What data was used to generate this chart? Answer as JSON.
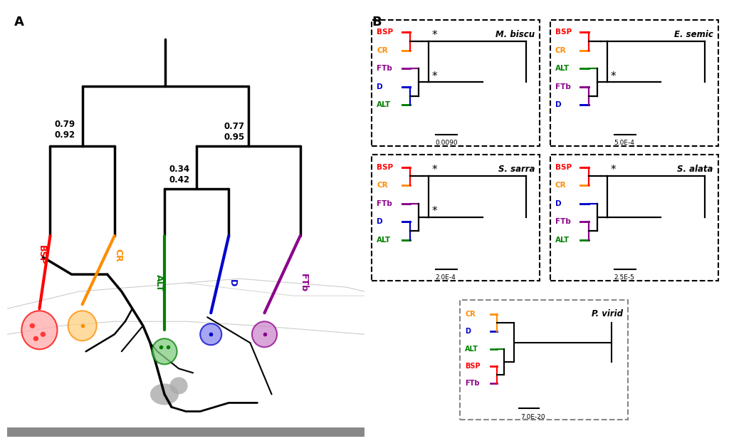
{
  "colors": {
    "BSP": "#ff0000",
    "CR": "#ff8c00",
    "ALT": "#008000",
    "D": "#0000cd",
    "FTb": "#8b008b"
  },
  "species_trees": [
    {
      "name": "M. biscu",
      "box_style": "dashed_black",
      "order": [
        "BSP",
        "CR",
        "FTb",
        "D",
        "ALT"
      ],
      "g1": [
        "BSP",
        "CR"
      ],
      "g2_outer": "FTb",
      "g2_inner": [
        "D",
        "ALT"
      ],
      "scale": "0.0090",
      "star1": true,
      "star2": true
    },
    {
      "name": "E. semic",
      "box_style": "dashed_black",
      "order": [
        "BSP",
        "CR",
        "ALT",
        "FTb",
        "D"
      ],
      "g1": [
        "BSP",
        "CR"
      ],
      "g2_outer": "ALT",
      "g2_inner": [
        "FTb",
        "D"
      ],
      "scale": "5.0E-4",
      "star1": false,
      "star2": true
    },
    {
      "name": "S. sarra",
      "box_style": "dashed_black",
      "order": [
        "BSP",
        "CR",
        "FTb",
        "D",
        "ALT"
      ],
      "g1": [
        "BSP",
        "CR"
      ],
      "g2_outer": "FTb",
      "g2_inner": [
        "D",
        "ALT"
      ],
      "scale": "2.0E-4",
      "star1": true,
      "star2": true
    },
    {
      "name": "S. alata",
      "box_style": "dashed_black",
      "order": [
        "BSP",
        "CR",
        "D",
        "FTb",
        "ALT"
      ],
      "g1": [
        "BSP",
        "CR"
      ],
      "g2_outer": "D",
      "g2_inner": [
        "FTb",
        "ALT"
      ],
      "scale": "2.5E-5",
      "star1": true,
      "star2": false
    },
    {
      "name": "P. virid",
      "box_style": "dashed_gray",
      "order": [
        "CR",
        "D",
        "ALT",
        "BSP",
        "FTb"
      ],
      "g1": null,
      "g2_outer": null,
      "g2_inner": null,
      "scale": "7.0E-20",
      "star1": false,
      "star2": false
    }
  ]
}
